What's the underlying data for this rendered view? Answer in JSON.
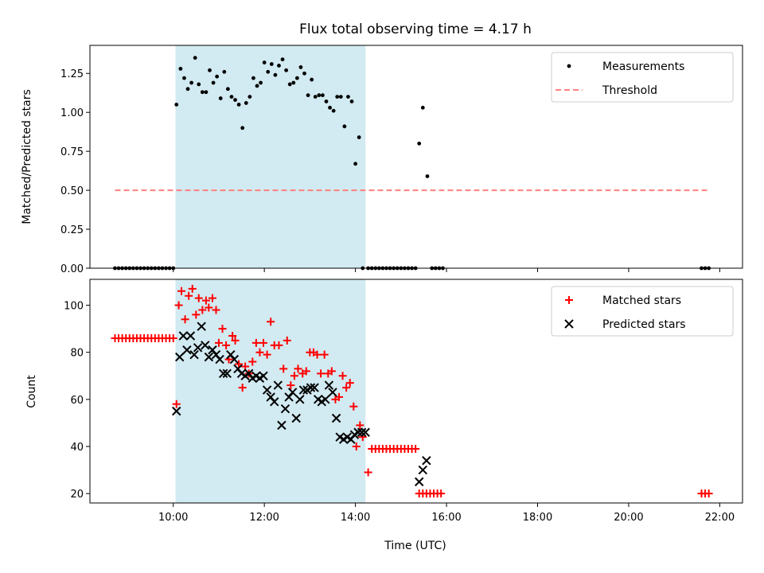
{
  "chart_data": [
    {
      "type": "scatter",
      "title": "Flux total observing time = 4.17 h",
      "xlabel": "",
      "ylabel": "Matched/Predicted stars",
      "ylim": [
        0,
        1.43
      ],
      "yticks": [
        0.0,
        0.25,
        0.5,
        0.75,
        1.0,
        1.25
      ],
      "ytick_labels": [
        "0.00",
        "0.25",
        "0.50",
        "0.75",
        "1.00",
        "1.25"
      ],
      "xlim_hours": [
        8.17,
        22.5
      ],
      "shaded_region_hours": [
        10.05,
        14.22
      ],
      "shaded_color": "#add8e6",
      "legend_position": "top-right",
      "series": [
        {
          "name": "Measurements",
          "kind": "dot",
          "color": "#000000",
          "x_hours": [
            8.72,
            8.8,
            8.88,
            8.96,
            9.04,
            9.12,
            9.2,
            9.28,
            9.36,
            9.44,
            9.52,
            9.6,
            9.68,
            9.76,
            9.84,
            9.92,
            10.0,
            10.07,
            10.16,
            10.24,
            10.32,
            10.4,
            10.48,
            10.56,
            10.64,
            10.72,
            10.8,
            10.88,
            10.96,
            11.04,
            11.12,
            11.2,
            11.28,
            11.36,
            11.44,
            11.52,
            11.6,
            11.68,
            11.76,
            11.84,
            11.92,
            12.0,
            12.08,
            12.16,
            12.24,
            12.32,
            12.4,
            12.48,
            12.56,
            12.64,
            12.72,
            12.8,
            12.88,
            12.96,
            13.04,
            13.12,
            13.2,
            13.28,
            13.36,
            13.44,
            13.52,
            13.6,
            13.68,
            13.76,
            13.84,
            13.92,
            14.0,
            14.08,
            14.16,
            14.28,
            14.36,
            14.44,
            14.52,
            14.6,
            14.68,
            14.76,
            14.84,
            14.92,
            15.0,
            15.08,
            15.16,
            15.24,
            15.32,
            15.4,
            15.48,
            15.58,
            15.68,
            15.76,
            15.84,
            15.92,
            21.6,
            21.68,
            21.76
          ],
          "y": [
            0,
            0,
            0,
            0,
            0,
            0,
            0,
            0,
            0,
            0,
            0,
            0,
            0,
            0,
            0,
            0,
            0,
            1.05,
            1.28,
            1.22,
            1.15,
            1.19,
            1.35,
            1.18,
            1.13,
            1.13,
            1.27,
            1.19,
            1.23,
            1.09,
            1.26,
            1.15,
            1.1,
            1.08,
            1.05,
            0.9,
            1.06,
            1.1,
            1.22,
            1.17,
            1.19,
            1.32,
            1.26,
            1.31,
            1.24,
            1.3,
            1.34,
            1.27,
            1.18,
            1.19,
            1.22,
            1.29,
            1.25,
            1.11,
            1.21,
            1.1,
            1.11,
            1.11,
            1.07,
            1.03,
            1.01,
            1.1,
            1.1,
            0.91,
            1.1,
            1.07,
            0.67,
            0.84,
            0,
            0,
            0,
            0,
            0,
            0,
            0,
            0,
            0,
            0,
            0,
            0,
            0,
            0,
            0,
            0.8,
            1.03,
            0.59,
            0,
            0,
            0,
            0,
            0,
            0,
            0
          ]
        },
        {
          "name": "Threshold",
          "kind": "dashed-line",
          "color": "#ff8080",
          "x_hours": [
            8.72,
            21.75
          ],
          "y": [
            0.5,
            0.5
          ]
        }
      ]
    },
    {
      "type": "scatter",
      "title": "",
      "xlabel": "Time (UTC)",
      "ylabel": "Count",
      "ylim": [
        16,
        111
      ],
      "yticks": [
        20,
        40,
        60,
        80,
        100
      ],
      "ytick_labels": [
        "20",
        "40",
        "60",
        "80",
        "100"
      ],
      "xlim_hours": [
        8.17,
        22.5
      ],
      "xticks_hours": [
        10,
        12,
        14,
        16,
        18,
        20,
        22
      ],
      "xtick_labels": [
        "10:00",
        "12:00",
        "14:00",
        "16:00",
        "18:00",
        "20:00",
        "22:00"
      ],
      "shaded_region_hours": [
        10.05,
        14.22
      ],
      "shaded_color": "#add8e6",
      "legend_position": "top-right",
      "series": [
        {
          "name": "Matched stars",
          "kind": "plus",
          "color": "#ff0000",
          "x_hours": [
            8.72,
            8.8,
            8.88,
            8.96,
            9.04,
            9.12,
            9.2,
            9.28,
            9.36,
            9.44,
            9.52,
            9.6,
            9.68,
            9.76,
            9.84,
            9.92,
            10.0,
            10.07,
            10.12,
            10.18,
            10.26,
            10.34,
            10.42,
            10.5,
            10.56,
            10.64,
            10.72,
            10.78,
            10.86,
            10.94,
            11.0,
            11.08,
            11.16,
            11.22,
            11.3,
            11.36,
            11.44,
            11.52,
            11.58,
            11.66,
            11.74,
            11.82,
            11.9,
            11.98,
            12.06,
            12.14,
            12.22,
            12.32,
            12.42,
            12.5,
            12.58,
            12.66,
            12.74,
            12.84,
            12.92,
            13.0,
            13.08,
            13.16,
            13.24,
            13.32,
            13.4,
            13.48,
            13.56,
            13.64,
            13.72,
            13.8,
            13.88,
            13.96,
            14.02,
            14.1,
            14.16,
            14.28,
            14.36,
            14.44,
            14.52,
            14.6,
            14.68,
            14.76,
            14.84,
            14.92,
            15.0,
            15.08,
            15.16,
            15.24,
            15.32,
            15.4,
            15.48,
            15.56,
            15.64,
            15.72,
            15.8,
            15.88,
            21.6,
            21.68,
            21.76
          ],
          "y": [
            86,
            86,
            86,
            86,
            86,
            86,
            86,
            86,
            86,
            86,
            86,
            86,
            86,
            86,
            86,
            86,
            86,
            58,
            100,
            106,
            94,
            104,
            107,
            96,
            103,
            98,
            102,
            99,
            103,
            98,
            84,
            90,
            83,
            77,
            87,
            85,
            75,
            65,
            74,
            71,
            76,
            84,
            80,
            84,
            79,
            93,
            83,
            83,
            73,
            85,
            66,
            70,
            73,
            71,
            72,
            80,
            80,
            79,
            71,
            79,
            71,
            72,
            60,
            61,
            70,
            65,
            67,
            57,
            40,
            49,
            44,
            29,
            39,
            39,
            39,
            39,
            39,
            39,
            39,
            39,
            39,
            39,
            39,
            39,
            39,
            20,
            20,
            20,
            20,
            20,
            20,
            20,
            20,
            20,
            20
          ]
        },
        {
          "name": "Predicted stars",
          "kind": "x",
          "color": "#000000",
          "x_hours": [
            10.07,
            10.14,
            10.22,
            10.3,
            10.38,
            10.46,
            10.54,
            10.62,
            10.7,
            10.78,
            10.86,
            10.94,
            11.02,
            11.1,
            11.18,
            11.26,
            11.34,
            11.42,
            11.5,
            11.58,
            11.66,
            11.74,
            11.82,
            11.9,
            11.98,
            12.06,
            12.14,
            12.22,
            12.3,
            12.38,
            12.46,
            12.54,
            12.62,
            12.7,
            12.78,
            12.86,
            12.94,
            13.02,
            13.1,
            13.18,
            13.26,
            13.34,
            13.42,
            13.5,
            13.58,
            13.66,
            13.74,
            13.82,
            13.9,
            13.98,
            14.06,
            14.14,
            14.22,
            15.4,
            15.48,
            15.56
          ],
          "y": [
            55,
            78,
            87,
            81,
            87,
            79,
            82,
            91,
            83,
            78,
            81,
            79,
            77,
            71,
            71,
            79,
            77,
            73,
            71,
            70,
            71,
            69,
            70,
            69,
            70,
            64,
            61,
            59,
            66,
            49,
            56,
            61,
            63,
            52,
            60,
            64,
            64,
            65,
            65,
            60,
            59,
            60,
            66,
            63,
            52,
            44,
            43,
            44,
            43,
            45,
            46,
            46,
            46,
            25,
            30,
            34
          ]
        }
      ]
    }
  ]
}
